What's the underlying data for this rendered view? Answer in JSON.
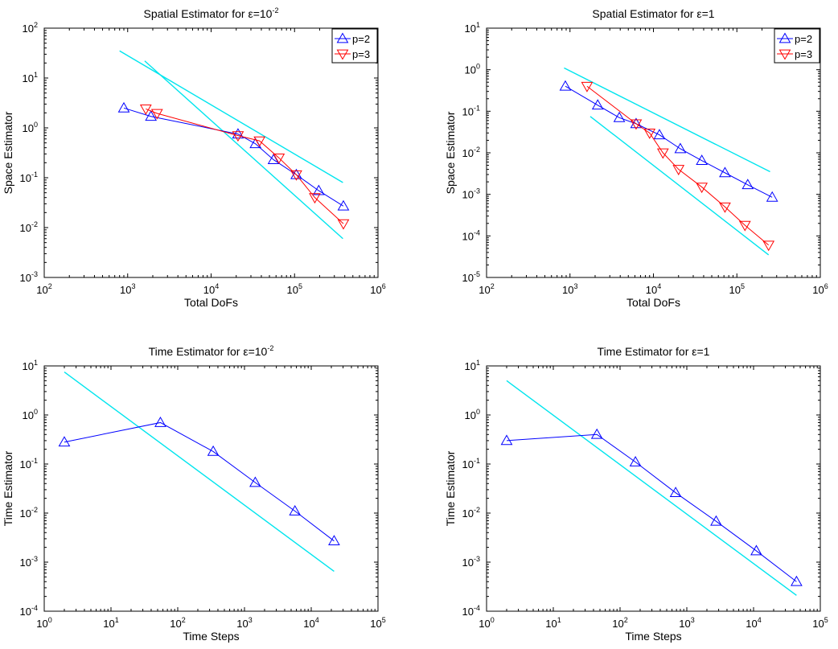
{
  "chart_data": [
    {
      "id": "spatial-eps-small",
      "type": "line",
      "title": "Spatial Estimator for ε=10",
      "title_sup": "-2",
      "xlabel": "Total DoFs",
      "ylabel": "Space Estimator",
      "xscale": "log",
      "yscale": "log",
      "xlim_exp": [
        2,
        6
      ],
      "ylim_exp": [
        -3,
        2
      ],
      "tick_base": "10",
      "xtick_exps": [
        "2",
        "3",
        "4",
        "5",
        "6"
      ],
      "ytick_exps": [
        "-3",
        "-2",
        "-1",
        "0",
        "1",
        "2"
      ],
      "legend_position": "top-right",
      "series": [
        {
          "name": "p=2",
          "color": "#0000ff",
          "marker": "triangle-up",
          "x": [
            900,
            1900,
            21000,
            34000,
            56000,
            105000,
            195000,
            385000
          ],
          "y": [
            2.5,
            1.7,
            0.75,
            0.48,
            0.23,
            0.115,
            0.055,
            0.027
          ]
        },
        {
          "name": "p=3",
          "color": "#ff0000",
          "marker": "triangle-down",
          "x": [
            1650,
            2250,
            21000,
            38000,
            65000,
            105000,
            175000,
            385000
          ],
          "y": [
            2.4,
            1.95,
            0.7,
            0.55,
            0.25,
            0.115,
            0.04,
            0.012
          ]
        }
      ],
      "reference_lines": [
        {
          "color": "#00e5ee",
          "x": [
            800,
            380000
          ],
          "y": [
            35,
            0.08
          ]
        },
        {
          "color": "#00e5ee",
          "x": [
            1600,
            380000
          ],
          "y": [
            22,
            0.006
          ]
        }
      ]
    },
    {
      "id": "spatial-eps-one",
      "type": "line",
      "title": "Spatial Estimator for ε=1",
      "title_sup": "",
      "xlabel": "Total DoFs",
      "ylabel": "Space Estimator",
      "xscale": "log",
      "yscale": "log",
      "xlim_exp": [
        2,
        6
      ],
      "ylim_exp": [
        -5,
        1
      ],
      "tick_base": "10",
      "xtick_exps": [
        "2",
        "3",
        "4",
        "5",
        "6"
      ],
      "ytick_exps": [
        "-5",
        "-4",
        "-3",
        "-2",
        "-1",
        "0",
        "1"
      ],
      "legend_position": "top-right",
      "series": [
        {
          "name": "p=2",
          "color": "#0000ff",
          "marker": "triangle-up",
          "x": [
            880,
            2150,
            3900,
            6200,
            11800,
            21000,
            38000,
            72000,
            135000,
            265000
          ],
          "y": [
            0.4,
            0.14,
            0.07,
            0.05,
            0.027,
            0.0125,
            0.0065,
            0.0033,
            0.0017,
            0.00085
          ]
        },
        {
          "name": "p=3",
          "color": "#ff0000",
          "marker": "triangle-down",
          "x": [
            1600,
            6200,
            9000,
            13000,
            20000,
            38000,
            72000,
            125000,
            240000
          ],
          "y": [
            0.4,
            0.05,
            0.03,
            0.01,
            0.004,
            0.0015,
            0.0005,
            0.00018,
            6e-05
          ]
        }
      ],
      "reference_lines": [
        {
          "color": "#00e5ee",
          "x": [
            850,
            250000
          ],
          "y": [
            1.1,
            0.0035
          ]
        },
        {
          "color": "#00e5ee",
          "x": [
            1750,
            240000
          ],
          "y": [
            0.075,
            3.5e-05
          ]
        }
      ]
    },
    {
      "id": "time-eps-small",
      "type": "line",
      "title": "Time Estimator for ε=10",
      "title_sup": "-2",
      "xlabel": "Time Steps",
      "ylabel": "Time Estimator",
      "xscale": "log",
      "yscale": "log",
      "xlim_exp": [
        0,
        5
      ],
      "ylim_exp": [
        -4,
        1
      ],
      "tick_base": "10",
      "xtick_exps": [
        "0",
        "1",
        "2",
        "3",
        "4",
        "5"
      ],
      "ytick_exps": [
        "-4",
        "-3",
        "-2",
        "-1",
        "0",
        "1"
      ],
      "legend_position": "",
      "series": [
        {
          "name": "",
          "color": "#0000ff",
          "marker": "triangle-up",
          "x": [
            2,
            55,
            340,
            1450,
            5700,
            22000
          ],
          "y": [
            0.28,
            0.7,
            0.18,
            0.042,
            0.011,
            0.0027
          ]
        }
      ],
      "reference_lines": [
        {
          "color": "#00e5ee",
          "x": [
            2,
            22000
          ],
          "y": [
            7.5,
            0.00065
          ]
        }
      ]
    },
    {
      "id": "time-eps-one",
      "type": "line",
      "title": "Time Estimator for ε=1",
      "title_sup": "",
      "xlabel": "Time Steps",
      "ylabel": "Time Estimator",
      "xscale": "log",
      "yscale": "log",
      "xlim_exp": [
        0,
        5
      ],
      "ylim_exp": [
        -4,
        1
      ],
      "tick_base": "10",
      "xtick_exps": [
        "0",
        "1",
        "2",
        "3",
        "4",
        "5"
      ],
      "ytick_exps": [
        "-4",
        "-3",
        "-2",
        "-1",
        "0",
        "1"
      ],
      "legend_position": "",
      "series": [
        {
          "name": "",
          "color": "#0000ff",
          "marker": "triangle-up",
          "x": [
            2,
            45,
            170,
            680,
            2750,
            11000,
            44000
          ],
          "y": [
            0.3,
            0.4,
            0.11,
            0.026,
            0.0068,
            0.0017,
            0.0004
          ]
        }
      ],
      "reference_lines": [
        {
          "color": "#00e5ee",
          "x": [
            2,
            44000
          ],
          "y": [
            5,
            0.00021
          ]
        }
      ]
    }
  ]
}
